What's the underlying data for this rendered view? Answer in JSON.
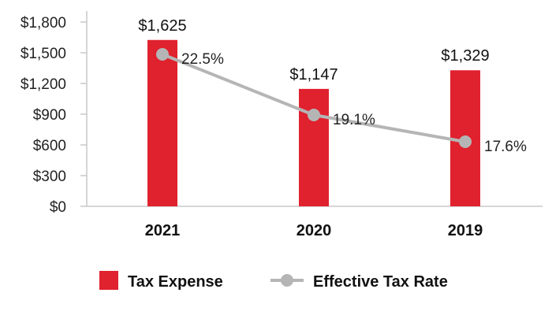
{
  "chart_data": {
    "type": "bar",
    "title": "",
    "xlabel": "",
    "ylabel": "",
    "categories": [
      "2021",
      "2020",
      "2019"
    ],
    "ylim": [
      0,
      1800
    ],
    "yticks": [
      0,
      300,
      600,
      900,
      1200,
      1500,
      1800
    ],
    "ytick_labels": [
      "$0",
      "$300",
      "$600",
      "$900",
      "$1,200",
      "$1,500",
      "$1,800"
    ],
    "series": [
      {
        "name": "Tax Expense",
        "type": "bar",
        "values": [
          1625,
          1147,
          1329
        ],
        "labels": [
          "$1,625",
          "$1,147",
          "$1,329"
        ],
        "color": "#E0212E"
      },
      {
        "name": "Effective Tax Rate",
        "type": "line",
        "values": [
          22.5,
          19.1,
          17.6
        ],
        "labels": [
          "22.5%",
          "19.1%",
          "17.6%"
        ],
        "color": "#B5B5B5"
      }
    ],
    "legend": {
      "placement": "bottom",
      "items": [
        "Tax Expense",
        "Effective Tax Rate"
      ]
    },
    "grid": false
  }
}
